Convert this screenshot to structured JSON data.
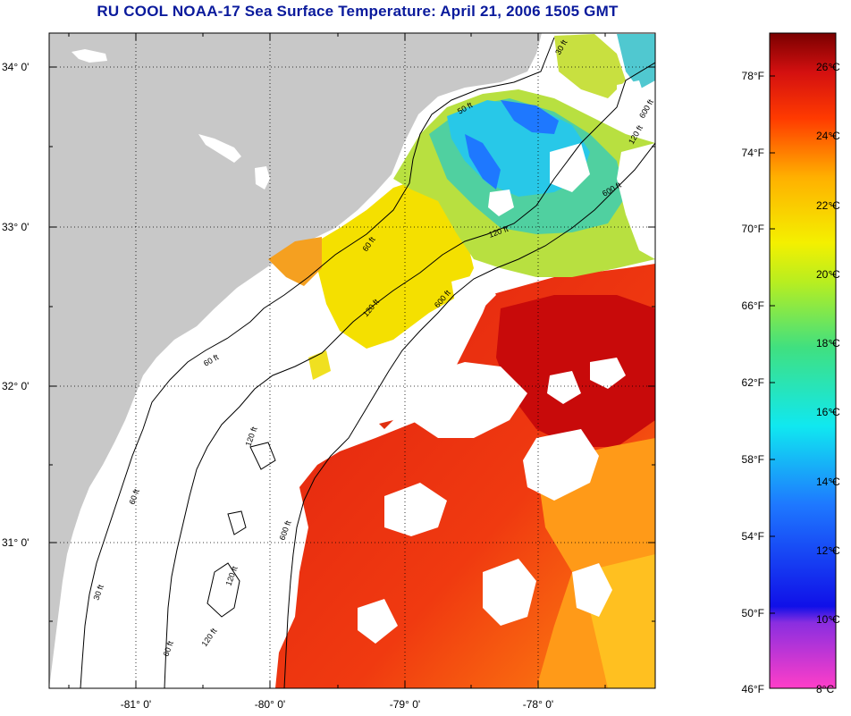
{
  "title": "RU COOL  NOAA-17  Sea Surface Temperature:  April 21, 2006 1505 GMT",
  "axes": {
    "lat_labels": [
      "34° 0'",
      "33° 0'",
      "32° 0'",
      "31° 0'"
    ],
    "lon_labels": [
      "-81° 0'",
      "-80° 0'",
      "-79° 0'",
      "-78° 0'"
    ]
  },
  "contours": {
    "labels": [
      "30 ft",
      "50 ft",
      "60 ft",
      "120 ft",
      "600 ft",
      "60 ft",
      "120 ft",
      "600 ft",
      "60 ft",
      "120 ft",
      "600 ft",
      "30 ft",
      "120 ft",
      "60 ft",
      "120 ft",
      "120 ft",
      "600 ft"
    ]
  },
  "colorbar": {
    "fahrenheit_labels": [
      "78°F",
      "74°F",
      "70°F",
      "66°F",
      "62°F",
      "58°F",
      "54°F",
      "50°F",
      "46°F"
    ],
    "celsius_labels": [
      "26°C",
      "24°C",
      "22°C",
      "20°C",
      "18°C",
      "16°C",
      "14°C",
      "12°C",
      "10°C",
      "8°C"
    ]
  },
  "colors": {
    "land": "#c8c8c8",
    "title": "#0a1a9c",
    "warm": "#e3201a",
    "cool": "#3fc8e8"
  }
}
